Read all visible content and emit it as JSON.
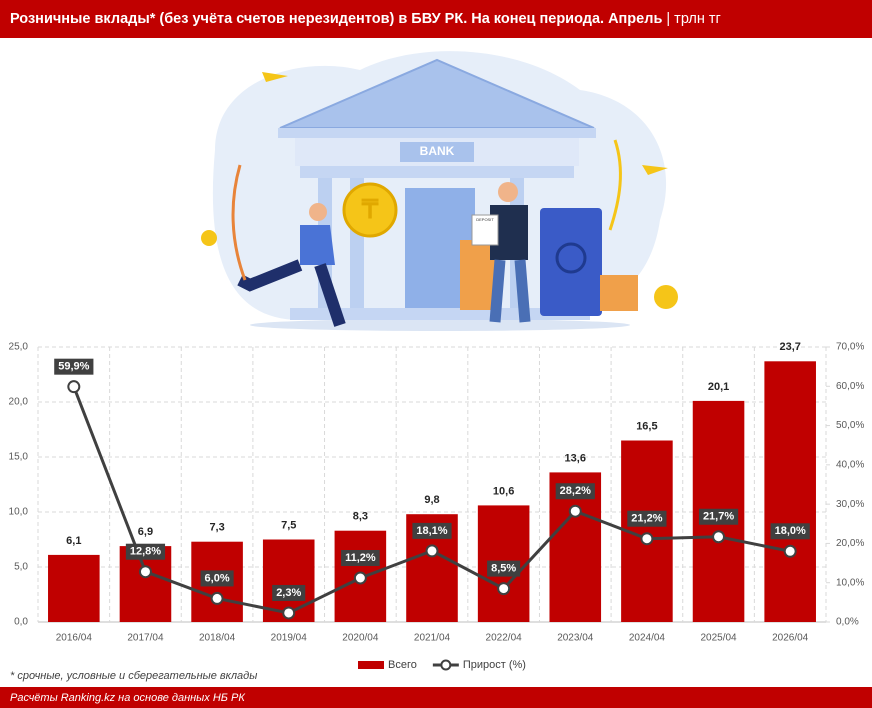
{
  "chart_data": {
    "type": "bar",
    "title": "Розничные вклады* (без учёта счетов нерезидентов) в БВУ РК. На конец периода. Апрель",
    "unit": "| трлн тг",
    "categories": [
      "2016/04",
      "2017/04",
      "2018/04",
      "2019/04",
      "2020/04",
      "2021/04",
      "2022/04",
      "2023/04",
      "2024/04",
      "2025/04",
      "2026/04"
    ],
    "series": [
      {
        "name": "Всего",
        "type": "bar",
        "color": "#c00000",
        "values": [
          6.1,
          6.9,
          7.3,
          7.5,
          8.3,
          9.8,
          10.6,
          13.6,
          16.5,
          20.1,
          23.7
        ],
        "value_labels": [
          "6,1",
          "6,9",
          "7,3",
          "7,5",
          "8,3",
          "9,8",
          "10,6",
          "13,6",
          "16,5",
          "20,1",
          "23,7"
        ]
      },
      {
        "name": "Прирост (%)",
        "type": "line",
        "axis": "y2",
        "color": "#404040",
        "values": [
          59.9,
          12.8,
          6.0,
          2.3,
          11.2,
          18.1,
          8.5,
          28.2,
          21.2,
          21.7,
          18.0
        ],
        "value_labels": [
          "59,9%",
          "12,8%",
          "6,0%",
          "2,3%",
          "11,2%",
          "18,1%",
          "8,5%",
          "28,2%",
          "21,2%",
          "21,7%",
          "18,0%"
        ]
      }
    ],
    "ylim": [
      0,
      25
    ],
    "yticks": [
      {
        "value": 0,
        "label": "0,0"
      },
      {
        "value": 5,
        "label": "5,0"
      },
      {
        "value": 10,
        "label": "10,0"
      },
      {
        "value": 15,
        "label": "15,0"
      },
      {
        "value": 20,
        "label": "20,0"
      },
      {
        "value": 25,
        "label": "25,0"
      }
    ],
    "y2lim": [
      0,
      70
    ],
    "y2ticks": [
      {
        "value": 0,
        "label": "0,0%"
      },
      {
        "value": 10,
        "label": "10,0%"
      },
      {
        "value": 20,
        "label": "20,0%"
      },
      {
        "value": 30,
        "label": "30,0%"
      },
      {
        "value": 40,
        "label": "40,0%"
      },
      {
        "value": 50,
        "label": "50,0%"
      },
      {
        "value": 60,
        "label": "60,0%"
      },
      {
        "value": 70,
        "label": "70,0%"
      }
    ],
    "grid": true,
    "legend": "bottom",
    "footnote": "* срочные, условные и сберегательные вклады",
    "source": "Расчёты Ranking.kz на основе данных НБ РК"
  },
  "illustration": {
    "bank_sign": "BANK",
    "document": "DEPOSIT"
  }
}
